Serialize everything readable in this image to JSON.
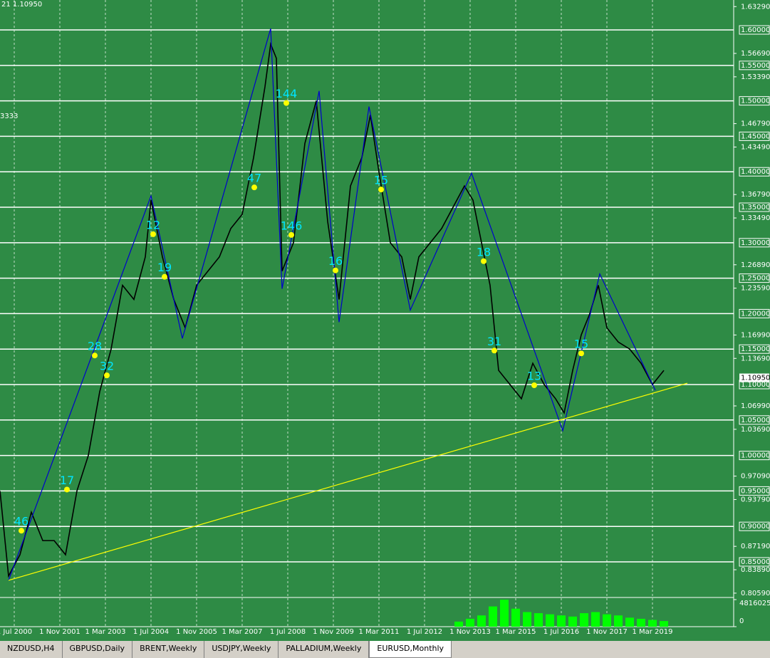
{
  "chart_data": {
    "type": "line",
    "header_text": "21 1.10950",
    "side_text": "3333",
    "x": [
      1,
      4,
      8,
      12,
      16,
      20,
      24,
      28,
      32,
      36,
      40,
      44,
      48,
      52,
      54,
      58,
      62,
      66,
      70,
      74,
      78,
      82,
      86,
      90,
      94,
      96,
      98,
      100,
      104,
      108,
      112,
      116,
      120,
      124,
      128,
      131,
      134,
      138,
      142,
      145,
      148,
      152,
      156,
      160,
      164,
      167,
      170,
      173,
      176,
      180,
      184,
      188,
      192,
      196,
      199,
      202,
      205,
      208,
      211,
      214,
      218,
      222,
      226,
      230,
      234
    ],
    "series": [
      {
        "color": "#000000",
        "values": [
          0.95,
          0.83,
          0.86,
          0.92,
          0.88,
          0.88,
          0.86,
          0.95,
          1.0,
          1.09,
          1.15,
          1.24,
          1.22,
          1.28,
          1.36,
          1.28,
          1.22,
          1.18,
          1.24,
          1.26,
          1.28,
          1.32,
          1.34,
          1.42,
          1.52,
          1.58,
          1.56,
          1.26,
          1.3,
          1.44,
          1.5,
          1.33,
          1.22,
          1.38,
          1.42,
          1.48,
          1.4,
          1.3,
          1.28,
          1.22,
          1.28,
          1.3,
          1.32,
          1.35,
          1.38,
          1.36,
          1.3,
          1.24,
          1.12,
          1.1,
          1.08,
          1.13,
          1.1,
          1.08,
          1.06,
          1.12,
          1.17,
          1.2,
          1.24,
          1.18,
          1.16,
          1.15,
          1.13,
          1.1,
          1.12
        ]
      },
      {
        "color": "#0000cc",
        "x": [
          4,
          54,
          65,
          96,
          100,
          113,
          120,
          130.5,
          145,
          166.5,
          198.5,
          211.5,
          231
        ],
        "values": [
          0.824,
          1.366,
          1.165,
          1.602,
          1.235,
          1.514,
          1.188,
          1.492,
          1.205,
          1.398,
          1.035,
          1.256,
          1.092
        ]
      },
      {
        "color": "#ffff00",
        "x": [
          4,
          242.25
        ],
        "values": [
          0.824,
          1.102
        ]
      }
    ],
    "annotations": [
      {
        "label": "46",
        "x": 8.5,
        "y": 0.906
      },
      {
        "label": "17",
        "x": 24.5,
        "y": 0.964
      },
      {
        "label": "28",
        "x": 34.25,
        "y": 1.153
      },
      {
        "label": "32",
        "x": 38.5,
        "y": 1.125
      },
      {
        "label": "12",
        "x": 54.75,
        "y": 1.324
      },
      {
        "label": "19",
        "x": 58.75,
        "y": 1.264
      },
      {
        "label": "47",
        "x": 90.25,
        "y": 1.39
      },
      {
        "label": "144",
        "x": 101.5,
        "y": 1.509
      },
      {
        "label": "146",
        "x": 103.25,
        "y": 1.323
      },
      {
        "label": "16",
        "x": 118.75,
        "y": 1.273
      },
      {
        "label": "15",
        "x": 134.75,
        "y": 1.387
      },
      {
        "label": "18",
        "x": 170.75,
        "y": 1.286
      },
      {
        "label": "31",
        "x": 174.5,
        "y": 1.16
      },
      {
        "label": "13",
        "x": 188.5,
        "y": 1.111
      },
      {
        "label": "15",
        "x": 205,
        "y": 1.156
      }
    ],
    "annotation_color": "#00e5ff",
    "xlim": [
      1,
      258.5
    ],
    "xticks": [
      {
        "value": 6,
        "label": "1 Jul 2000"
      },
      {
        "value": 22,
        "label": "1 Nov 2001"
      },
      {
        "value": 38,
        "label": "1 Mar 2003"
      },
      {
        "value": 54,
        "label": "1 Jul 2004"
      },
      {
        "value": 70,
        "label": "1 Nov 2005"
      },
      {
        "value": 86,
        "label": "1 Mar 2007"
      },
      {
        "value": 102,
        "label": "1 Jul 2008"
      },
      {
        "value": 118,
        "label": "1 Nov 2009"
      },
      {
        "value": 134,
        "label": "1 Mar 2011"
      },
      {
        "value": 150,
        "label": "1 Jul 2012"
      },
      {
        "value": 166,
        "label": "1 Nov 2013"
      },
      {
        "value": 182,
        "label": "1 Mar 2015"
      },
      {
        "value": 198,
        "label": "1 Jul 2016"
      },
      {
        "value": 214,
        "label": "1 Nov 2017"
      },
      {
        "value": 230,
        "label": "1 Mar 2019"
      }
    ],
    "ylim": [
      0.8008,
      1.6422
    ],
    "yticks": [
      {
        "value": 1.6329,
        "label": "1.63290"
      },
      {
        "value": 1.6,
        "label": "1.60000"
      },
      {
        "value": 1.5669,
        "label": "1.56690"
      },
      {
        "value": 1.55,
        "label": "1.55000"
      },
      {
        "value": 1.5339,
        "label": "1.53390"
      },
      {
        "value": 1.5,
        "label": "1.50000"
      },
      {
        "value": 1.4679,
        "label": "1.46790"
      },
      {
        "value": 1.45,
        "label": "1.45000"
      },
      {
        "value": 1.4349,
        "label": "1.43490"
      },
      {
        "value": 1.4,
        "label": "1.40000"
      },
      {
        "value": 1.3679,
        "label": "1.36790"
      },
      {
        "value": 1.35,
        "label": "1.35000"
      },
      {
        "value": 1.3349,
        "label": "1.33490"
      },
      {
        "value": 1.3,
        "label": "1.30000"
      },
      {
        "value": 1.2689,
        "label": "1.26890"
      },
      {
        "value": 1.25,
        "label": "1.25000"
      },
      {
        "value": 1.2359,
        "label": "1.23590"
      },
      {
        "value": 1.2,
        "label": "1.20000"
      },
      {
        "value": 1.1699,
        "label": "1.16990"
      },
      {
        "value": 1.15,
        "label": "1.15000"
      },
      {
        "value": 1.1369,
        "label": "1.13690"
      },
      {
        "value": 1.1,
        "label": "1.10000"
      },
      {
        "value": 1.0699,
        "label": "1.06990"
      },
      {
        "value": 1.05,
        "label": "1.05000"
      },
      {
        "value": 1.0369,
        "label": "1.03690"
      },
      {
        "value": 1,
        "label": "1.00000"
      },
      {
        "value": 0.9709,
        "label": "0.97090"
      },
      {
        "value": 0.95,
        "label": "0.95000"
      },
      {
        "value": 0.9379,
        "label": "0.93790"
      },
      {
        "value": 0.9,
        "label": "0.90000"
      },
      {
        "value": 0.8719,
        "label": "0.87190"
      },
      {
        "value": 0.85,
        "label": "0.85000"
      },
      {
        "value": 0.8389,
        "label": "0.83890"
      },
      {
        "value": 0.8059,
        "label": "0.80590"
      }
    ],
    "level_step": 0.05,
    "current_price": {
      "value": 1.1095,
      "label": "1.10950"
    },
    "volume": {
      "color": "#00ff00",
      "x": [
        162,
        166,
        170,
        174,
        178,
        182,
        186,
        190,
        194,
        198,
        202,
        206,
        210,
        214,
        218,
        222,
        226,
        230,
        234
      ],
      "values": [
        900000,
        1400000,
        2000000,
        3600000,
        4800000,
        3200000,
        2600000,
        2400000,
        2200000,
        2000000,
        1800000,
        2400000,
        2600000,
        2200000,
        2000000,
        1600000,
        1400000,
        1200000,
        1000000
      ],
      "ylim": [
        0,
        4816025
      ],
      "yticks": [
        4816025,
        0
      ]
    }
  },
  "tabs": [
    "NZDUSD,H4",
    "GBPUSD,Daily",
    "BRENT,Weekly",
    "USDJPY,Weekly",
    "PALLADIUM,Weekly",
    "EURUSD,Monthly"
  ],
  "active_tab": 5
}
